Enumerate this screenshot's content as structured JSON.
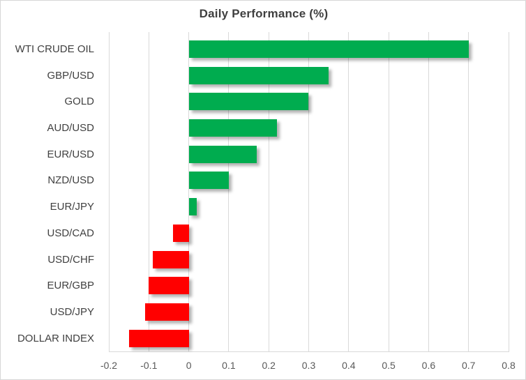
{
  "chart_data": {
    "type": "bar",
    "orientation": "horizontal",
    "title": "Daily Performance (%)",
    "categories": [
      "WTI CRUDE OIL",
      "GBP/USD",
      "GOLD",
      "AUD/USD",
      "EUR/USD",
      "NZD/USD",
      "EUR/JPY",
      "USD/CAD",
      "USD/CHF",
      "EUR/GBP",
      "USD/JPY",
      "DOLLAR INDEX"
    ],
    "values": [
      0.7,
      0.35,
      0.3,
      0.22,
      0.17,
      0.1,
      0.02,
      -0.04,
      -0.09,
      -0.1,
      -0.11,
      -0.15
    ],
    "xlim": [
      -0.2,
      0.8
    ],
    "xtick_labels": [
      "-0.2",
      "-0.1",
      "0",
      "0.1",
      "0.2",
      "0.3",
      "0.4",
      "0.5",
      "0.6",
      "0.7",
      "0.8"
    ],
    "xticks": [
      -0.2,
      -0.1,
      0,
      0.1,
      0.2,
      0.3,
      0.4,
      0.5,
      0.6,
      0.7,
      0.8
    ],
    "grid": true,
    "legend": "none",
    "colors": {
      "positive_bar": "#00ac4f",
      "negative_bar": "#ff0000",
      "gridline": "#d9d9d9",
      "title_text": "#3f3f3f",
      "category_text": "#404040",
      "tick_text": "#595959",
      "background": "#ffffff"
    }
  }
}
